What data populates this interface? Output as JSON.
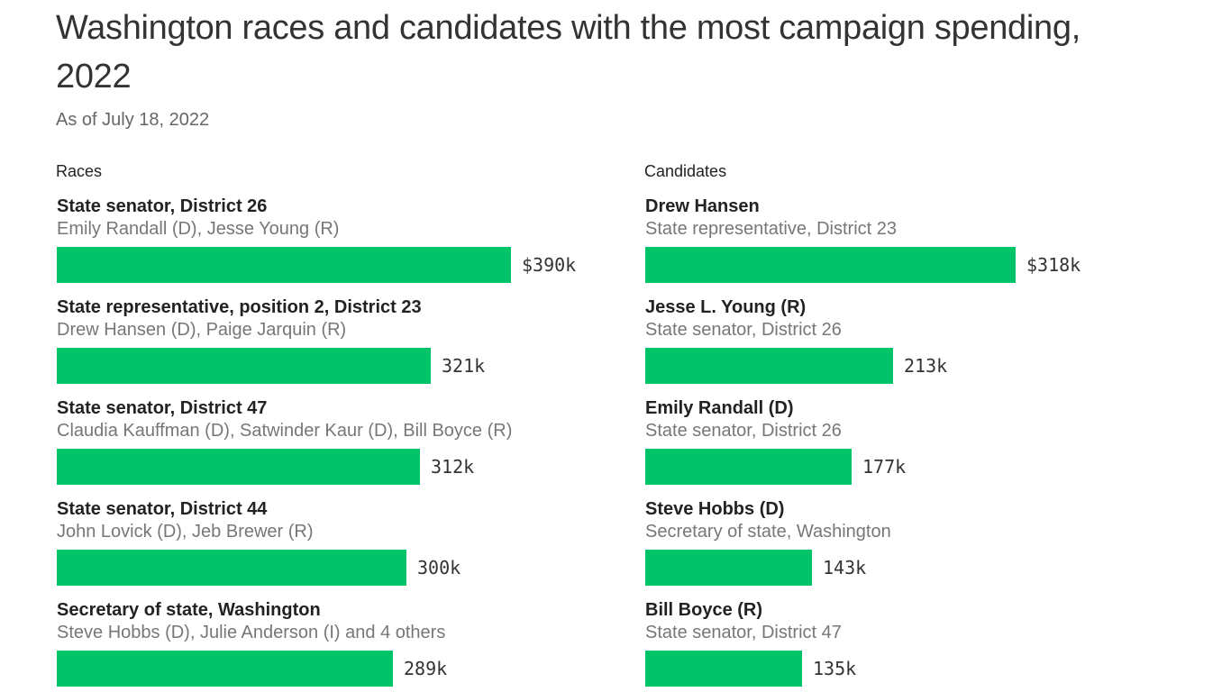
{
  "title": "Washington races and candidates with the most campaign spending, 2022",
  "subtitle": "As of July 18, 2022",
  "chart_data": [
    {
      "type": "bar",
      "heading": "Races",
      "orientation": "horizontal",
      "max_value": 390,
      "categories": [
        "State senator, District 26",
        "State representative, position 2, District 23",
        "State senator, District 47",
        "State senator, District 44",
        "Secretary of state, Washington"
      ],
      "subtitles": [
        "Emily Randall (D), Jesse Young (R)",
        "Drew Hansen (D), Paige Jarquin (R)",
        "Claudia Kauffman (D), Satwinder Kaur (D), Bill Boyce (R)",
        "John Lovick (D), Jeb Brewer (R)",
        "Steve Hobbs (D), Julie Anderson (I) and 4 others"
      ],
      "values": [
        390,
        321,
        312,
        300,
        289
      ],
      "value_labels": [
        "$390k",
        "321k",
        "312k",
        "300k",
        "289k"
      ],
      "color": "#00c36a"
    },
    {
      "type": "bar",
      "heading": "Candidates",
      "orientation": "horizontal",
      "max_value": 390,
      "categories": [
        "Drew Hansen",
        "Jesse L. Young (R)",
        "Emily Randall (D)",
        "Steve Hobbs (D)",
        "Bill Boyce (R)"
      ],
      "subtitles": [
        "State representative, District 23",
        "State senator, District 26",
        "State senator, District 26",
        "Secretary of state, Washington",
        "State senator, District 47"
      ],
      "values": [
        318,
        213,
        177,
        143,
        135
      ],
      "value_labels": [
        "$318k",
        "213k",
        "177k",
        "143k",
        "135k"
      ],
      "color": "#00c36a"
    }
  ]
}
